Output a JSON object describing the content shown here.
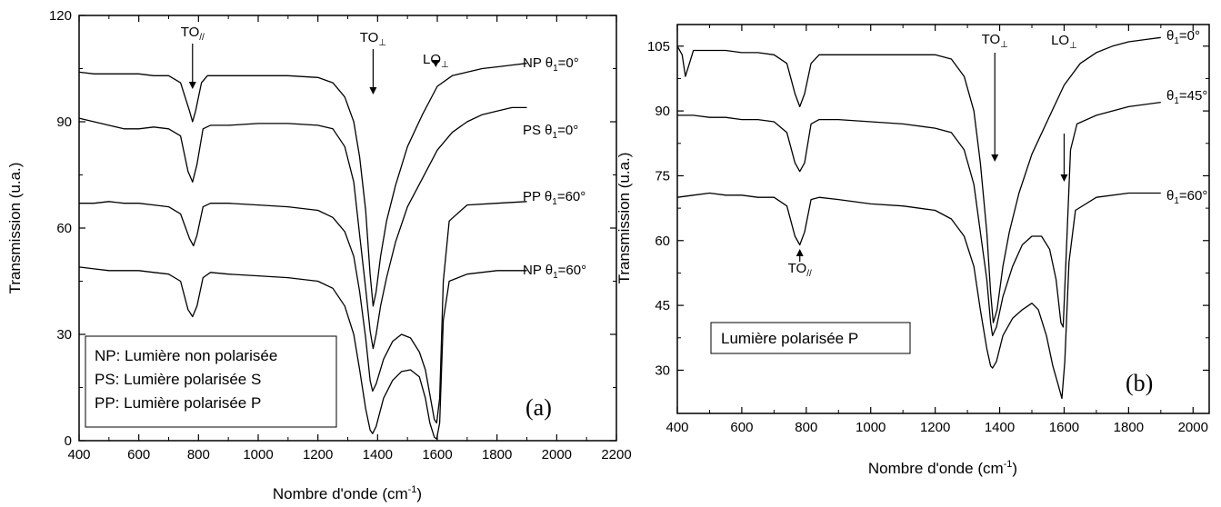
{
  "chart_data": [
    {
      "type": "line",
      "xlabel": "Nombre d'onde (cm",
      "xlabel_sup": "-1",
      "xlabel_tail": ")",
      "ylabel": "Transmission (u.a.)",
      "xlim": [
        400,
        2200
      ],
      "ylim": [
        0,
        120
      ],
      "xticks": [
        400,
        600,
        800,
        1000,
        1200,
        1400,
        1600,
        1800,
        2000,
        2200
      ],
      "yticks": [
        0,
        30,
        60,
        90,
        120
      ],
      "panel_label": "(a)",
      "legend_lines": [
        "NP: Lumière non polarisée",
        "PS: Lumière polarisée S",
        "PP: Lumière polarisée P"
      ],
      "legend_placement": "bottom-left",
      "peak_labels": [
        {
          "text": "TO",
          "sub": "//",
          "x": 780
        },
        {
          "text": "TO",
          "sub": "⊥",
          "x": 1385
        },
        {
          "text": "LO",
          "sub": "⊥",
          "x": 1595
        }
      ],
      "series": [
        {
          "name": "NP θ1=0°",
          "prefix": "NP θ",
          "angle_sub": "1",
          "angle_text": "=0°",
          "x": [
            400,
            450,
            500,
            550,
            600,
            650,
            700,
            740,
            770,
            780,
            790,
            810,
            830,
            900,
            1000,
            1100,
            1200,
            1250,
            1290,
            1320,
            1340,
            1360,
            1375,
            1385,
            1395,
            1410,
            1430,
            1460,
            1500,
            1550,
            1600,
            1650,
            1700,
            1750,
            1800,
            1850,
            1900
          ],
          "y": [
            104,
            103.5,
            103.5,
            103.5,
            103.5,
            103,
            103,
            101,
            93,
            90,
            93,
            101,
            103,
            103,
            103,
            103,
            102.5,
            101,
            97,
            90,
            80,
            65,
            47,
            38,
            42,
            52,
            62,
            72,
            83,
            92,
            100,
            103,
            104,
            105,
            105.5,
            106,
            106.5
          ]
        },
        {
          "name": "PS θ1=0°",
          "prefix": "PS θ",
          "angle_sub": "1",
          "angle_text": "=0°",
          "x": [
            400,
            450,
            500,
            550,
            600,
            650,
            700,
            740,
            765,
            780,
            795,
            815,
            840,
            900,
            1000,
            1100,
            1200,
            1250,
            1290,
            1320,
            1340,
            1360,
            1375,
            1385,
            1395,
            1410,
            1430,
            1460,
            1500,
            1550,
            1600,
            1650,
            1700,
            1750,
            1800,
            1850,
            1900
          ],
          "y": [
            91,
            90,
            89,
            88,
            88,
            88.5,
            88,
            86,
            76,
            73,
            78,
            88,
            89,
            89,
            89.5,
            89.5,
            89,
            88,
            83,
            73,
            58,
            43,
            31,
            26,
            30,
            38,
            46,
            56,
            66,
            74,
            82,
            87,
            90,
            92,
            93,
            94,
            94
          ]
        },
        {
          "name": "PP θ1=60°",
          "prefix": "PP θ",
          "angle_sub": "1",
          "angle_text": "=60°",
          "x": [
            400,
            450,
            500,
            550,
            600,
            650,
            700,
            740,
            770,
            783,
            795,
            815,
            840,
            900,
            1000,
            1100,
            1200,
            1250,
            1290,
            1320,
            1340,
            1360,
            1375,
            1383,
            1395,
            1420,
            1450,
            1480,
            1510,
            1540,
            1560,
            1575,
            1590,
            1598,
            1608,
            1620,
            1640,
            1700,
            1800,
            1900
          ],
          "y": [
            67,
            67,
            67.5,
            67,
            67,
            66.5,
            66,
            64,
            57,
            55,
            58,
            66,
            67,
            67,
            66.5,
            66,
            65,
            63,
            59,
            52,
            42,
            29,
            17,
            14,
            16,
            23,
            28,
            30,
            29,
            25,
            20,
            13,
            6,
            5,
            12,
            45,
            62,
            66.5,
            67,
            67.5
          ]
        },
        {
          "name": "NP θ1=60°",
          "prefix": "NP θ",
          "angle_sub": "1",
          "angle_text": "=60°",
          "x": [
            400,
            450,
            500,
            550,
            600,
            650,
            700,
            740,
            765,
            780,
            795,
            815,
            840,
            900,
            1000,
            1100,
            1200,
            1250,
            1290,
            1320,
            1340,
            1360,
            1375,
            1383,
            1395,
            1420,
            1450,
            1480,
            1510,
            1540,
            1560,
            1575,
            1590,
            1598,
            1608,
            1620,
            1640,
            1700,
            1800,
            1900
          ],
          "y": [
            49,
            48.5,
            48,
            48,
            48,
            47.5,
            47,
            45,
            37,
            35,
            38,
            46,
            47.5,
            47,
            46.5,
            46,
            45,
            43,
            38,
            30,
            20,
            9,
            3,
            2,
            4,
            12,
            17,
            19.5,
            20,
            18,
            12,
            5,
            1,
            0.5,
            5,
            34,
            45,
            47,
            48,
            48
          ]
        }
      ]
    },
    {
      "type": "line",
      "xlabel": "Nombre d'onde (cm",
      "xlabel_sup": "-1",
      "xlabel_tail": ")",
      "ylabel": "Transmission (u.a.)",
      "xlim": [
        400,
        2050
      ],
      "ylim": [
        20,
        110
      ],
      "xticks": [
        400,
        600,
        800,
        1000,
        1200,
        1400,
        1600,
        1800,
        2000
      ],
      "yticks": [
        30,
        45,
        60,
        75,
        90,
        105
      ],
      "panel_label": "(b)",
      "legend_lines": [
        "Lumière polarisée P"
      ],
      "legend_placement": "bottom-left",
      "peak_labels": [
        {
          "text": "TO",
          "sub": "⊥",
          "x": 1385
        },
        {
          "text": "LO",
          "sub": "⊥",
          "x": 1600
        },
        {
          "text": "TO",
          "sub": "//",
          "x": 780
        }
      ],
      "series": [
        {
          "name": "θ1=0°",
          "prefix": "θ",
          "angle_sub": "1",
          "angle_text": "=0°",
          "x": [
            400,
            415,
            425,
            450,
            500,
            550,
            600,
            650,
            700,
            740,
            765,
            780,
            795,
            815,
            840,
            900,
            1000,
            1100,
            1200,
            1250,
            1290,
            1320,
            1340,
            1360,
            1372,
            1380,
            1392,
            1410,
            1430,
            1460,
            1500,
            1550,
            1600,
            1650,
            1700,
            1750,
            1800,
            1850,
            1900
          ],
          "y": [
            105,
            103,
            98,
            104,
            104,
            104,
            103.5,
            103.5,
            103,
            101,
            94,
            91,
            94,
            101,
            103,
            103,
            103,
            103,
            103,
            102,
            98,
            90,
            78,
            62,
            48,
            41,
            44,
            54,
            62,
            71,
            80,
            88,
            96,
            101,
            103.5,
            105,
            106,
            106.5,
            107
          ]
        },
        {
          "name": "θ1=45°",
          "prefix": "θ",
          "angle_sub": "1",
          "angle_text": "=45°",
          "x": [
            400,
            450,
            500,
            550,
            600,
            650,
            700,
            740,
            765,
            780,
            795,
            815,
            840,
            900,
            1000,
            1100,
            1200,
            1250,
            1290,
            1320,
            1340,
            1360,
            1372,
            1378,
            1390,
            1410,
            1440,
            1470,
            1500,
            1530,
            1555,
            1575,
            1590,
            1597,
            1606,
            1620,
            1640,
            1700,
            1800,
            1900
          ],
          "y": [
            89,
            89,
            88.5,
            88.5,
            88,
            88,
            87.5,
            85,
            78,
            76,
            78,
            87,
            88,
            88,
            87.5,
            87,
            86,
            85,
            81,
            73,
            62,
            51,
            41,
            38,
            40,
            47,
            54,
            59,
            61,
            61,
            58,
            51,
            41,
            40,
            56,
            81,
            87,
            89,
            91,
            92
          ]
        },
        {
          "name": "θ1=60°",
          "prefix": "θ",
          "angle_sub": "1",
          "angle_text": "=60°",
          "x": [
            400,
            450,
            500,
            550,
            600,
            650,
            700,
            740,
            765,
            780,
            795,
            815,
            840,
            900,
            1000,
            1100,
            1200,
            1250,
            1290,
            1320,
            1340,
            1360,
            1372,
            1378,
            1390,
            1410,
            1440,
            1470,
            1500,
            1520,
            1545,
            1565,
            1580,
            1593,
            1602,
            1615,
            1635,
            1700,
            1800,
            1900
          ],
          "y": [
            70,
            70.5,
            71,
            70.5,
            70.5,
            70,
            70,
            68,
            61,
            59,
            62,
            69.5,
            70,
            69.5,
            68.5,
            68,
            67,
            65,
            61,
            54,
            44,
            35,
            31,
            30.5,
            32,
            38,
            42,
            44,
            45.5,
            44,
            38,
            31,
            27,
            23.5,
            32,
            55,
            67,
            70,
            71,
            71
          ]
        }
      ]
    }
  ]
}
